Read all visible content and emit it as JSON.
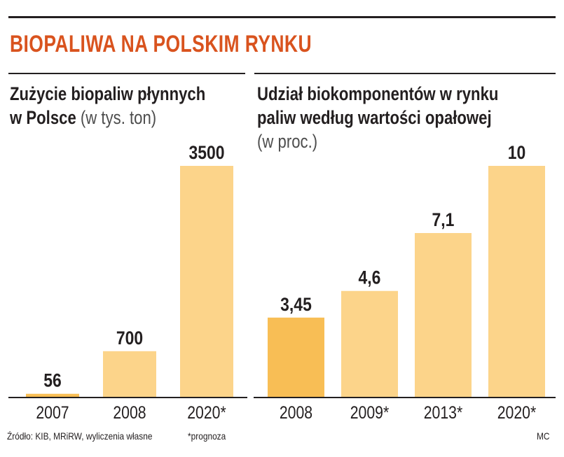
{
  "title": "BIOPALIWA NA POLSKIM RYNKU",
  "colors": {
    "title": "#d9531e",
    "bar_dark": "#f8be55",
    "bar_light": "#fcd48a",
    "axis": "#231f20"
  },
  "left": {
    "title_bold_1": "Zużycie biopaliw płynnych",
    "title_bold_2": "w Polsce",
    "title_unit": "(w tys. ton)"
  },
  "right": {
    "title_bold_1": "Udział biokomponentów w rynku",
    "title_bold_2": "paliw według wartości opałowej",
    "title_unit": "(w proc.)"
  },
  "chart_data": [
    {
      "type": "bar",
      "title": "Zużycie biopaliw płynnych w Polsce (w tys. ton)",
      "categories": [
        "2007",
        "2008",
        "2020*"
      ],
      "values": [
        56,
        700,
        3500
      ],
      "labels": [
        "56",
        "700",
        "3500"
      ],
      "ylim": [
        0,
        3500
      ],
      "grid": false
    },
    {
      "type": "bar",
      "title": "Udział biokomponentów w rynku paliw według wartości opałowej (w proc.)",
      "categories": [
        "2008",
        "2009*",
        "2013*",
        "2020*"
      ],
      "values": [
        3.45,
        4.6,
        7.1,
        10
      ],
      "labels": [
        "3,45",
        "4,6",
        "7,1",
        "10"
      ],
      "ylim": [
        0,
        10
      ],
      "grid": false
    }
  ],
  "footer": {
    "source": "Źródło: KIB, MRiRW, wyliczenia własne",
    "note": "*prognoza",
    "credit": "MC"
  }
}
